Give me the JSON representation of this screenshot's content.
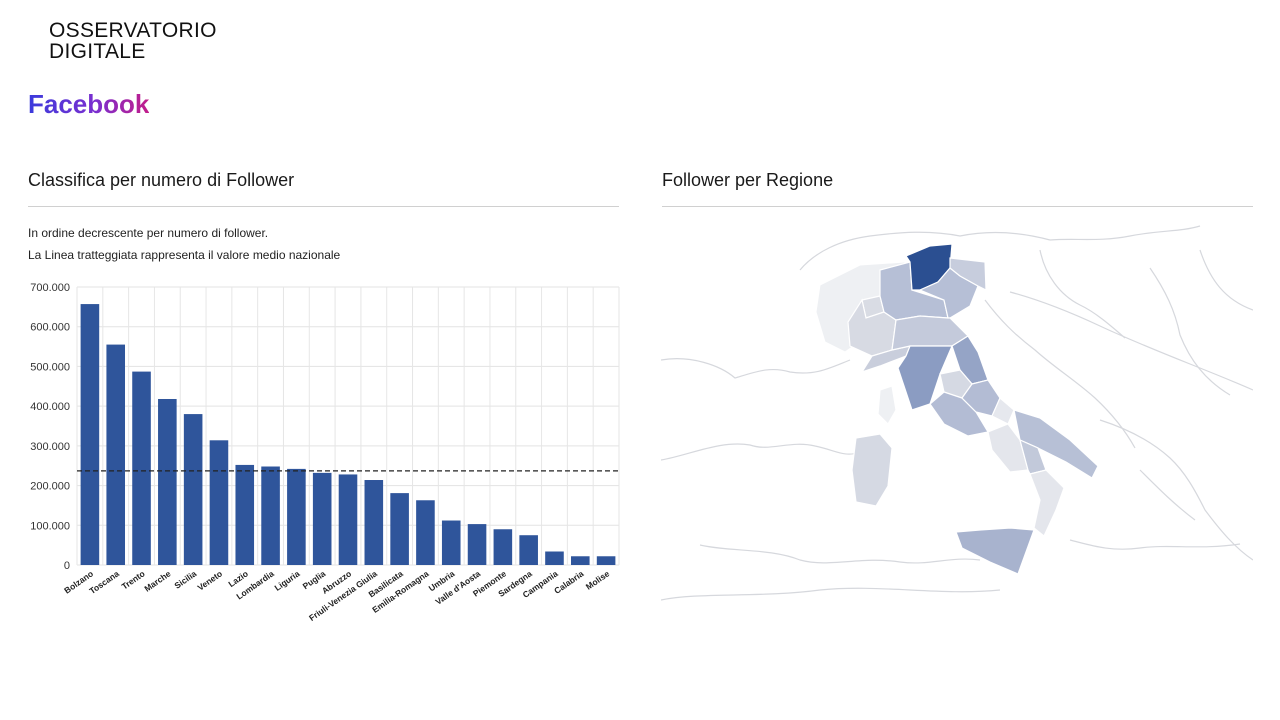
{
  "brand": {
    "line1": "OSSERVATORIO",
    "line2": "DIGITALE"
  },
  "page": {
    "heading": "Facebook"
  },
  "left_panel": {
    "title": "Classifica per numero di Follower",
    "note1": "In ordine decrescente per numero di follower.",
    "note2": "La Linea tratteggiata rappresenta il valore medio nazionale"
  },
  "right_panel": {
    "title": "Follower per Regione"
  },
  "chart_data": [
    {
      "type": "bar",
      "categories": [
        "Bolzano",
        "Toscana",
        "Trento",
        "Marche",
        "Sicilia",
        "Veneto",
        "Lazio",
        "Lombardia",
        "Liguria",
        "Puglia",
        "Abruzzo",
        "Friuli-Venezia Giulia",
        "Basilicata",
        "Emilia-Romagna",
        "Umbria",
        "Valle d'Aosta",
        "Piemonte",
        "Sardegna",
        "Campania",
        "Calabria",
        "Molise"
      ],
      "values": [
        657000,
        555000,
        487000,
        418000,
        380000,
        314000,
        252000,
        248000,
        242000,
        232000,
        228000,
        214000,
        181000,
        163000,
        112000,
        103000,
        90000,
        75000,
        34000,
        22000,
        22000
      ],
      "ylim": [
        0,
        700000
      ],
      "yticks": [
        0,
        100000,
        200000,
        300000,
        400000,
        500000,
        600000,
        700000
      ],
      "ytick_labels": [
        "0",
        "100.000",
        "200.000",
        "300.000",
        "400.000",
        "500.000",
        "600.000",
        "700.000"
      ],
      "average_line": 237000,
      "grid": true,
      "bar_color": "#2f559b",
      "xlabel": "",
      "ylabel": "",
      "title": ""
    }
  ],
  "map": {
    "type": "choropleth",
    "scale_colors": [
      "#e8eaef",
      "#2b4f91"
    ],
    "highlight": "Trentino-Alto Adige"
  }
}
